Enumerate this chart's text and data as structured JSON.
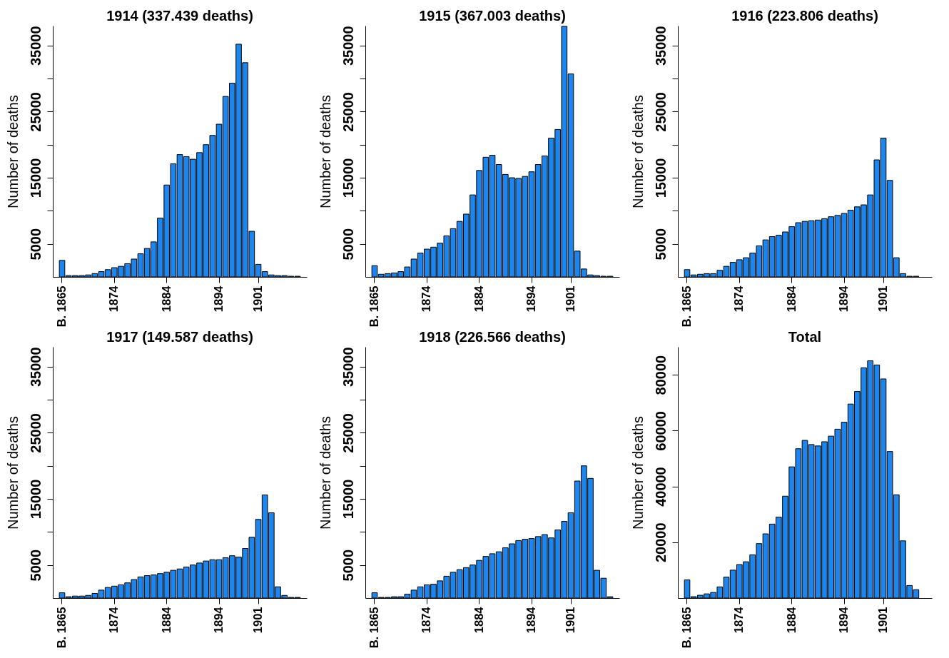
{
  "chart_data": [
    {
      "type": "bar",
      "title": "1914 (337.439 deaths)",
      "ylabel": "Number of deaths",
      "color": "#1c86ee",
      "categories": [
        "B. 1865",
        null,
        null,
        null,
        null,
        null,
        null,
        null,
        "1874",
        null,
        null,
        null,
        null,
        null,
        null,
        null,
        "1884",
        null,
        null,
        null,
        null,
        null,
        null,
        null,
        "1894",
        null,
        null,
        null,
        null,
        null,
        "1901",
        null,
        null,
        null,
        null,
        null,
        null
      ],
      "values": [
        2500,
        200,
        200,
        200,
        300,
        500,
        800,
        1100,
        1400,
        1600,
        2000,
        2700,
        3500,
        4300,
        5300,
        8900,
        13900,
        17100,
        18500,
        18200,
        17800,
        18800,
        20000,
        21400,
        23100,
        27300,
        29300,
        35200,
        32400,
        6900,
        1900,
        800,
        300,
        200,
        200,
        100,
        100
      ],
      "ylim": [
        0,
        38000
      ],
      "yticks": [
        5000,
        {
          "value": 10000,
          "label": null
        },
        15000,
        {
          "value": 20000,
          "label": null
        },
        25000,
        {
          "value": 30000,
          "label": null
        },
        35000
      ]
    },
    {
      "type": "bar",
      "title": "1915 (367.003 deaths)",
      "ylabel": "Number of deaths",
      "color": "#1c86ee",
      "categories": [
        "B. 1865",
        null,
        null,
        null,
        null,
        null,
        null,
        null,
        "1874",
        null,
        null,
        null,
        null,
        null,
        null,
        null,
        "1884",
        null,
        null,
        null,
        null,
        null,
        null,
        null,
        "1894",
        null,
        null,
        null,
        null,
        null,
        "1901",
        null,
        null,
        null,
        null,
        null,
        null
      ],
      "values": [
        1700,
        400,
        500,
        600,
        800,
        1500,
        2700,
        3600,
        4200,
        4500,
        5100,
        6200,
        7300,
        8400,
        9500,
        12400,
        16100,
        18100,
        18400,
        17000,
        15500,
        15000,
        14900,
        15200,
        15900,
        17000,
        18300,
        21000,
        22300,
        37900,
        30700,
        3900,
        1200,
        300,
        200,
        100,
        100
      ],
      "ylim": [
        0,
        38000
      ],
      "yticks": [
        5000,
        {
          "value": 10000,
          "label": null
        },
        15000,
        {
          "value": 20000,
          "label": null
        },
        25000,
        {
          "value": 30000,
          "label": null
        },
        35000
      ]
    },
    {
      "type": "bar",
      "title": "1916 (223.806 deaths)",
      "ylabel": "Number of deaths",
      "color": "#1c86ee",
      "categories": [
        "B. 1865",
        null,
        null,
        null,
        null,
        null,
        null,
        null,
        "1874",
        null,
        null,
        null,
        null,
        null,
        null,
        null,
        "1884",
        null,
        null,
        null,
        null,
        null,
        null,
        null,
        "1894",
        null,
        null,
        null,
        null,
        null,
        "1901",
        null,
        null,
        null,
        null,
        null,
        null
      ],
      "values": [
        1100,
        300,
        400,
        500,
        500,
        1000,
        1600,
        2200,
        2600,
        2900,
        3600,
        4700,
        5600,
        6100,
        6300,
        6800,
        7600,
        8200,
        8400,
        8500,
        8600,
        8800,
        9100,
        9300,
        9600,
        10100,
        10600,
        10900,
        12400,
        17700,
        21000,
        14600,
        2900,
        500,
        100,
        100,
        null
      ],
      "ylim": [
        0,
        38000
      ],
      "yticks": [
        5000,
        {
          "value": 10000,
          "label": null
        },
        15000,
        {
          "value": 20000,
          "label": null
        },
        25000,
        {
          "value": 30000,
          "label": null
        },
        35000
      ]
    },
    {
      "type": "bar",
      "title": "1917 (149.587 deaths)",
      "ylabel": "Number of deaths",
      "color": "#1c86ee",
      "categories": [
        "B. 1865",
        null,
        null,
        null,
        null,
        null,
        null,
        null,
        "1874",
        null,
        null,
        null,
        null,
        null,
        null,
        null,
        "1884",
        null,
        null,
        null,
        null,
        null,
        null,
        null,
        "1894",
        null,
        null,
        null,
        null,
        null,
        "1901",
        null,
        null,
        null,
        null,
        null,
        null
      ],
      "values": [
        800,
        200,
        300,
        300,
        400,
        700,
        1200,
        1600,
        1800,
        2000,
        2300,
        2800,
        3200,
        3400,
        3500,
        3700,
        3900,
        4200,
        4400,
        4700,
        5000,
        5300,
        5600,
        5800,
        5800,
        6100,
        6400,
        6200,
        7500,
        9200,
        11900,
        15600,
        12900,
        1700,
        400,
        100,
        100
      ],
      "ylim": [
        0,
        38000
      ],
      "yticks": [
        5000,
        {
          "value": 10000,
          "label": null
        },
        15000,
        {
          "value": 20000,
          "label": null
        },
        25000,
        {
          "value": 30000,
          "label": null
        },
        35000
      ]
    },
    {
      "type": "bar",
      "title": "1918 (226.566 deaths)",
      "ylabel": "Number of deaths",
      "color": "#1c86ee",
      "categories": [
        "B. 1865",
        null,
        null,
        null,
        null,
        null,
        null,
        null,
        "1874",
        null,
        null,
        null,
        null,
        null,
        null,
        null,
        "1884",
        null,
        null,
        null,
        null,
        null,
        null,
        null,
        "1894",
        null,
        null,
        null,
        null,
        null,
        "1901",
        null,
        null,
        null,
        null,
        null,
        null
      ],
      "values": [
        800,
        100,
        100,
        200,
        200,
        600,
        1200,
        1700,
        2000,
        2100,
        2600,
        3300,
        3900,
        4300,
        4600,
        5000,
        5700,
        6300,
        6700,
        7000,
        7600,
        8200,
        8700,
        8900,
        9000,
        9300,
        9600,
        9100,
        10300,
        11600,
        12900,
        17700,
        20000,
        18100,
        4200,
        3000,
        200
      ],
      "ylim": [
        0,
        38000
      ],
      "yticks": [
        5000,
        {
          "value": 10000,
          "label": null
        },
        15000,
        {
          "value": 20000,
          "label": null
        },
        25000,
        {
          "value": 30000,
          "label": null
        },
        35000
      ]
    },
    {
      "type": "bar",
      "title": "Total",
      "ylabel": "Number of deaths",
      "color": "#1c86ee",
      "categories": [
        "B. 1865",
        null,
        null,
        null,
        null,
        null,
        null,
        null,
        "1874",
        null,
        null,
        null,
        null,
        null,
        null,
        null,
        "1884",
        null,
        null,
        null,
        null,
        null,
        null,
        null,
        "1894",
        null,
        null,
        null,
        null,
        null,
        "1901",
        null,
        null,
        null,
        null,
        null,
        null
      ],
      "values": [
        6500,
        500,
        1000,
        1500,
        2000,
        4000,
        7500,
        10000,
        12000,
        13000,
        15500,
        19500,
        23000,
        26500,
        29000,
        36500,
        47000,
        53500,
        56500,
        55000,
        54500,
        56000,
        58000,
        60500,
        63000,
        69500,
        74000,
        82500,
        85000,
        83500,
        78500,
        52500,
        37000,
        20500,
        4500,
        3000,
        null
      ],
      "ylim": [
        0,
        90000
      ],
      "yticks": [
        20000,
        40000,
        60000,
        80000
      ]
    }
  ]
}
